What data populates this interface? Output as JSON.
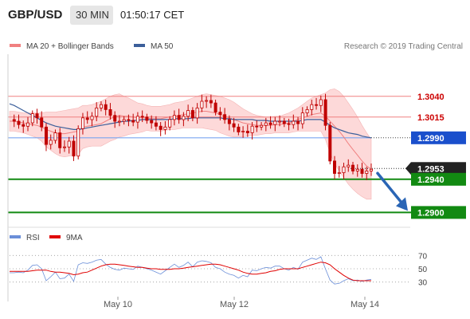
{
  "header": {
    "pair": "GBP/USD",
    "timeframe": "30 MIN",
    "time": "01:50:17 CET"
  },
  "legend": {
    "items": [
      {
        "label": "MA 20 + Bollinger Bands",
        "color": "#f08080"
      },
      {
        "label": "MA 50",
        "color": "#3b5f9a"
      }
    ],
    "credit": "Research © 2019 Trading Central"
  },
  "colors": {
    "resistance": "#cc0000",
    "pivot": "#1a4fcc",
    "support": "#128a12",
    "current": "#222222",
    "arrow": "#2a65b5",
    "candle": "#c00000",
    "band_fill": "#fdd9d9",
    "rsi": "#6b8fd8",
    "rsi_ma": "#e00000"
  },
  "chart_data": [
    {
      "type": "candlestick",
      "title": "",
      "x_ticks": [
        "May 10",
        "May 12",
        "May 14"
      ],
      "ylim": [
        1.2885,
        1.3085
      ],
      "levels": [
        {
          "value": 1.304,
          "label": "1.3040",
          "kind": "resistance"
        },
        {
          "value": 1.3015,
          "label": "1.3015",
          "kind": "resistance"
        },
        {
          "value": 1.299,
          "label": "1.2990",
          "kind": "pivot"
        },
        {
          "value": 1.2953,
          "label": "1.2953",
          "kind": "current"
        },
        {
          "value": 1.294,
          "label": "1.2940",
          "kind": "support"
        },
        {
          "value": 1.29,
          "label": "1.2900",
          "kind": "support"
        }
      ],
      "close_series": [
        1.3012,
        1.301,
        1.3006,
        1.3004,
        1.3008,
        1.3019,
        1.3014,
        1.3003,
        1.2982,
        1.2987,
        1.2996,
        1.2978,
        1.2979,
        1.2986,
        1.2968,
        1.3001,
        1.3014,
        1.3012,
        1.3016,
        1.3026,
        1.303,
        1.3024,
        1.3017,
        1.301,
        1.301,
        1.3012,
        1.3011,
        1.3009,
        1.3016,
        1.3015,
        1.3011,
        1.3008,
        1.3004,
        1.3,
        1.3003,
        1.3012,
        1.3017,
        1.3012,
        1.3016,
        1.3023,
        1.3014,
        1.3026,
        1.3034,
        1.3035,
        1.3032,
        1.3021,
        1.3018,
        1.3012,
        1.3007,
        1.3003,
        1.2997,
        1.2998,
        1.2996,
        1.3004,
        1.3003,
        1.3005,
        1.3008,
        1.3006,
        1.301,
        1.301,
        1.3007,
        1.3006,
        1.301,
        1.3007,
        1.302,
        1.3024,
        1.303,
        1.3029,
        1.3036,
        1.3005,
        1.2962,
        1.2947,
        1.2948,
        1.2955,
        1.2957,
        1.295,
        1.2952,
        1.2947,
        1.295,
        1.2952
      ],
      "ma20": [
        1.301,
        1.301,
        1.3009,
        1.3008,
        1.3007,
        1.3006,
        1.3005,
        1.3003,
        1.3,
        1.2998,
        1.2996,
        1.2995,
        1.2995,
        1.2996,
        1.2997,
        1.2998,
        1.3003,
        1.3004,
        1.3005,
        1.3006,
        1.3007,
        1.301,
        1.3013,
        1.3015,
        1.3017,
        1.3016,
        1.3016,
        1.3015,
        1.3014,
        1.3014,
        1.3014,
        1.3013,
        1.3013,
        1.3013,
        1.3014,
        1.3015,
        1.3016,
        1.3017,
        1.3018,
        1.3019,
        1.302,
        1.3021,
        1.3022,
        1.3022,
        1.3021,
        1.302,
        1.3018,
        1.3016,
        1.3014,
        1.3012,
        1.301,
        1.3008,
        1.3007,
        1.3006,
        1.3005,
        1.3005,
        1.3005,
        1.3005,
        1.3006,
        1.3006,
        1.3007,
        1.3008,
        1.301,
        1.3012,
        1.3014,
        1.3016,
        1.3018,
        1.3019,
        1.302,
        1.3016,
        1.301,
        1.3004,
        1.2998,
        1.2991,
        1.2983,
        1.2976,
        1.2969,
        1.2962,
        1.2956,
        1.2952
      ],
      "ma50": [
        1.3031,
        1.3029,
        1.3026,
        1.3023,
        1.302,
        1.3017,
        1.3014,
        1.3011,
        1.3008,
        1.3006,
        1.3004,
        1.3003,
        1.3002,
        1.3001,
        1.3,
        1.3,
        1.3001,
        1.3002,
        1.3003,
        1.3004,
        1.3005,
        1.3006,
        1.3007,
        1.3008,
        1.3009,
        1.301,
        1.301,
        1.3011,
        1.3011,
        1.3012,
        1.3012,
        1.3012,
        1.3012,
        1.3012,
        1.3012,
        1.3012,
        1.3013,
        1.3013,
        1.3013,
        1.3013,
        1.3014,
        1.3014,
        1.3014,
        1.3014,
        1.3014,
        1.3014,
        1.3014,
        1.3013,
        1.3013,
        1.3012,
        1.3012,
        1.3012,
        1.3012,
        1.3012,
        1.3011,
        1.3011,
        1.3011,
        1.301,
        1.301,
        1.301,
        1.301,
        1.301,
        1.301,
        1.301,
        1.3011,
        1.3012,
        1.3012,
        1.3012,
        1.3012,
        1.3009,
        1.3005,
        1.3002,
        1.3,
        1.2998,
        1.2996,
        1.2995,
        1.2994,
        1.2992,
        1.2991,
        1.299
      ],
      "band_width": [
        0.0012,
        0.0012,
        0.0012,
        0.0012,
        0.0013,
        0.0014,
        0.0015,
        0.0017,
        0.0021,
        0.0023,
        0.0025,
        0.0027,
        0.0028,
        0.0028,
        0.0028,
        0.0028,
        0.0026,
        0.0025,
        0.0025,
        0.0026,
        0.0027,
        0.0027,
        0.0027,
        0.0027,
        0.0026,
        0.0024,
        0.0022,
        0.002,
        0.0018,
        0.0017,
        0.0015,
        0.0015,
        0.0015,
        0.0015,
        0.0015,
        0.0015,
        0.0016,
        0.0016,
        0.0016,
        0.0017,
        0.0018,
        0.0019,
        0.002,
        0.0021,
        0.0021,
        0.0021,
        0.0022,
        0.0022,
        0.0022,
        0.0021,
        0.0019,
        0.0017,
        0.0015,
        0.0013,
        0.0012,
        0.0011,
        0.001,
        0.001,
        0.001,
        0.001,
        0.0011,
        0.0012,
        0.0013,
        0.0014,
        0.0016,
        0.0018,
        0.002,
        0.0021,
        0.0022,
        0.0028,
        0.0038,
        0.0045,
        0.0048,
        0.0049,
        0.0049,
        0.0048,
        0.0046,
        0.0043,
        0.004,
        0.0036
      ]
    },
    {
      "type": "line",
      "title": "",
      "legend": [
        "RSI",
        "9MA"
      ],
      "yticks": [
        30,
        50,
        70
      ],
      "ylim": [
        20,
        80
      ],
      "series": [
        {
          "name": "RSI",
          "values": [
            44,
            44,
            45,
            44,
            48,
            55,
            56,
            50,
            32,
            38,
            45,
            35,
            36,
            42,
            31,
            56,
            59,
            58,
            60,
            63,
            64,
            57,
            52,
            49,
            48,
            51,
            50,
            49,
            54,
            52,
            50,
            48,
            45,
            42,
            47,
            52,
            57,
            52,
            55,
            60,
            53,
            60,
            62,
            61,
            59,
            52,
            50,
            45,
            42,
            40,
            36,
            40,
            38,
            48,
            47,
            50,
            52,
            51,
            54,
            54,
            50,
            48,
            52,
            49,
            60,
            63,
            66,
            64,
            68,
            50,
            33,
            27,
            28,
            32,
            35,
            32,
            33,
            31,
            33,
            34
          ]
        },
        {
          "name": "9MA",
          "values": [
            46,
            46,
            46,
            46,
            46,
            47,
            48,
            48,
            48,
            46,
            45,
            45,
            44,
            43,
            41,
            42,
            44,
            45,
            48,
            51,
            54,
            56,
            57,
            57,
            56,
            55,
            54,
            53,
            52,
            52,
            51,
            50,
            50,
            49,
            49,
            49,
            50,
            50,
            51,
            52,
            53,
            54,
            55,
            56,
            57,
            57,
            56,
            54,
            52,
            50,
            48,
            45,
            43,
            42,
            42,
            43,
            44,
            46,
            47,
            49,
            50,
            50,
            50,
            50,
            52,
            54,
            56,
            58,
            60,
            59,
            56,
            50,
            45,
            40,
            36,
            33,
            32,
            32,
            32,
            32
          ]
        }
      ]
    }
  ]
}
